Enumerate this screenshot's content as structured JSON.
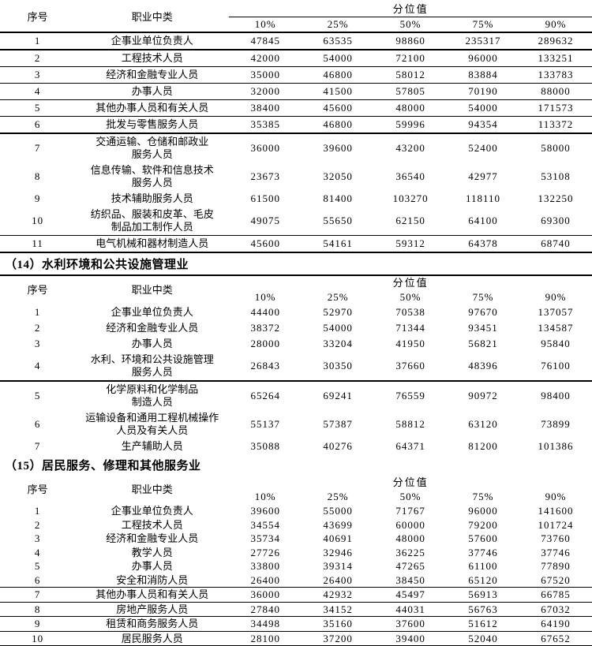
{
  "columns": {
    "seq": "序号",
    "occupation": "职业中类",
    "percentile_group": "分位值",
    "percentiles": [
      "10%",
      "25%",
      "50%",
      "75%",
      "90%"
    ]
  },
  "tables": [
    {
      "heading": null,
      "rows": [
        {
          "seq": "1",
          "occupation": [
            "企事业单位负责人"
          ],
          "values": [
            "47845",
            "63535",
            "98860",
            "235317",
            "289632"
          ],
          "rule": "thick"
        },
        {
          "seq": "2",
          "occupation": [
            "工程技术人员"
          ],
          "values": [
            "42000",
            "54000",
            "72100",
            "96000",
            "133251"
          ],
          "rule": "thin"
        },
        {
          "seq": "3",
          "occupation": [
            "经济和金融专业人员"
          ],
          "values": [
            "35000",
            "46800",
            "58012",
            "83884",
            "133783"
          ],
          "rule": "thin"
        },
        {
          "seq": "4",
          "occupation": [
            "办事人员"
          ],
          "values": [
            "32000",
            "41500",
            "57805",
            "70190",
            "88000"
          ],
          "rule": "thin"
        },
        {
          "seq": "5",
          "occupation": [
            "其他办事人员和有关人员"
          ],
          "values": [
            "38400",
            "45600",
            "48000",
            "54000",
            "171573"
          ],
          "rule": "thin"
        },
        {
          "seq": "6",
          "occupation": [
            "批发与零售服务人员"
          ],
          "values": [
            "35385",
            "46800",
            "59996",
            "94354",
            "113372"
          ],
          "rule": "thick"
        },
        {
          "seq": "7",
          "occupation": [
            "交通运输、仓储和邮政业",
            "服务人员"
          ],
          "values": [
            "36000",
            "39600",
            "43200",
            "52400",
            "58000"
          ],
          "rule": "none"
        },
        {
          "seq": "8",
          "occupation": [
            "信息传输、软件和信息技术",
            "服务人员"
          ],
          "values": [
            "23673",
            "32050",
            "36540",
            "42977",
            "53108"
          ],
          "rule": "none"
        },
        {
          "seq": "9",
          "occupation": [
            "技术辅助服务人员"
          ],
          "values": [
            "61500",
            "81400",
            "103270",
            "118110",
            "132250"
          ],
          "rule": "none"
        },
        {
          "seq": "10",
          "occupation": [
            "纺织品、服装和皮革、毛皮",
            "制品加工制作人员"
          ],
          "values": [
            "49075",
            "55650",
            "62150",
            "64100",
            "69300"
          ],
          "rule": "thin"
        },
        {
          "seq": "11",
          "occupation": [
            "电气机械和器材制造人员"
          ],
          "values": [
            "45600",
            "54161",
            "59312",
            "64378",
            "68740"
          ],
          "rule": "thick"
        }
      ]
    },
    {
      "heading": "（14）水利环境和公共设施管理业",
      "rows": [
        {
          "seq": "1",
          "occupation": [
            "企事业单位负责人"
          ],
          "values": [
            "44400",
            "52970",
            "70538",
            "97670",
            "137057"
          ],
          "rule": "none"
        },
        {
          "seq": "2",
          "occupation": [
            "经济和金融专业人员"
          ],
          "values": [
            "38372",
            "54000",
            "71344",
            "93451",
            "134587"
          ],
          "rule": "none"
        },
        {
          "seq": "3",
          "occupation": [
            "办事人员"
          ],
          "values": [
            "28000",
            "33204",
            "41950",
            "56821",
            "95840"
          ],
          "rule": "none"
        },
        {
          "seq": "4",
          "occupation": [
            "水利、环境和公共设施管理",
            "服务人员"
          ],
          "values": [
            "26843",
            "30350",
            "37660",
            "48396",
            "76100"
          ],
          "rule": "thick"
        },
        {
          "seq": "5",
          "occupation": [
            "化学原料和化学制品",
            "制造人员"
          ],
          "values": [
            "65264",
            "69241",
            "76559",
            "90972",
            "98400"
          ],
          "rule": "none"
        },
        {
          "seq": "6",
          "occupation": [
            "运输设备和通用工程机械操作",
            "人员及有关人员"
          ],
          "values": [
            "55137",
            "57387",
            "58812",
            "63120",
            "73899"
          ],
          "rule": "none"
        },
        {
          "seq": "7",
          "occupation": [
            "生产辅助人员"
          ],
          "values": [
            "35088",
            "40276",
            "64371",
            "81200",
            "101386"
          ],
          "rule": "none"
        }
      ]
    },
    {
      "heading": "（15）居民服务、修理和其他服务业",
      "rows": [
        {
          "seq": "1",
          "occupation": [
            "企事业单位负责人"
          ],
          "values": [
            "39600",
            "55000",
            "71767",
            "96000",
            "141600"
          ],
          "rule": "none"
        },
        {
          "seq": "2",
          "occupation": [
            "工程技术人员"
          ],
          "values": [
            "34554",
            "43699",
            "60000",
            "79200",
            "101724"
          ],
          "rule": "none"
        },
        {
          "seq": "3",
          "occupation": [
            "经济和金融专业人员"
          ],
          "values": [
            "35734",
            "40691",
            "48000",
            "57600",
            "73760"
          ],
          "rule": "none"
        },
        {
          "seq": "4",
          "occupation": [
            "教学人员"
          ],
          "values": [
            "27726",
            "32946",
            "36225",
            "37746",
            "37746"
          ],
          "rule": "none"
        },
        {
          "seq": "5",
          "occupation": [
            "办事人员"
          ],
          "values": [
            "33800",
            "39314",
            "47265",
            "61100",
            "77890"
          ],
          "rule": "none"
        },
        {
          "seq": "6",
          "occupation": [
            "安全和消防人员"
          ],
          "values": [
            "26400",
            "26400",
            "38450",
            "65120",
            "67520"
          ],
          "rule": "thin"
        },
        {
          "seq": "7",
          "occupation": [
            "其他办事人员和有关人员"
          ],
          "values": [
            "36000",
            "42932",
            "45497",
            "56913",
            "66785"
          ],
          "rule": "thin"
        },
        {
          "seq": "8",
          "occupation": [
            "房地产服务人员"
          ],
          "values": [
            "27840",
            "34152",
            "44031",
            "56763",
            "67032"
          ],
          "rule": "thin"
        },
        {
          "seq": "9",
          "occupation": [
            "租赁和商务服务人员"
          ],
          "values": [
            "34498",
            "35160",
            "37600",
            "51612",
            "64190"
          ],
          "rule": "thin"
        },
        {
          "seq": "10",
          "occupation": [
            "居民服务人员"
          ],
          "values": [
            "28100",
            "37200",
            "39400",
            "52040",
            "67652"
          ],
          "rule": "thin"
        }
      ]
    }
  ]
}
